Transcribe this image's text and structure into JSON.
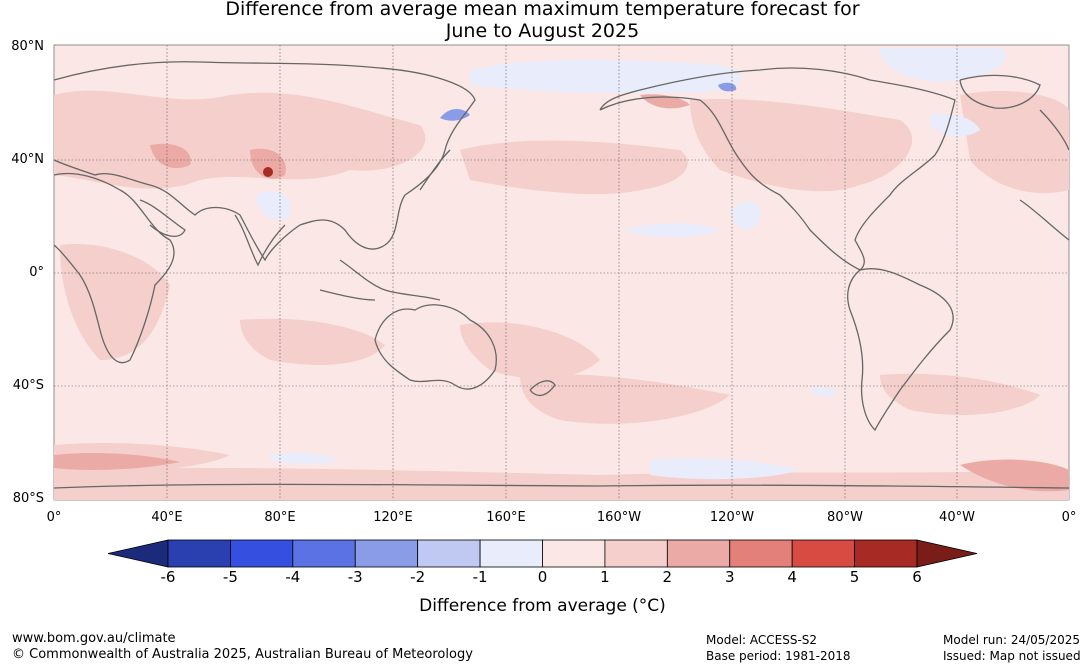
{
  "title_line1": "Difference from average mean maximum temperature forecast for",
  "title_line2": "June to August 2025",
  "lat_labels": [
    "80°N",
    "40°N",
    "0°",
    "40°S",
    "80°S"
  ],
  "lon_labels": [
    "0°",
    "40°E",
    "80°E",
    "120°E",
    "160°E",
    "160°W",
    "120°W",
    "80°W",
    "40°W",
    "0°"
  ],
  "colorbar": {
    "ticks": [
      "-6",
      "-5",
      "-4",
      "-3",
      "-2",
      "-1",
      "0",
      "1",
      "2",
      "3",
      "4",
      "5",
      "6"
    ],
    "colors": [
      "#1b2a7a",
      "#2a3fb0",
      "#3550e0",
      "#5a72e4",
      "#8a9be8",
      "#c0c9f2",
      "#e9ecfa",
      "#fbe8e6",
      "#f4cfcc",
      "#ecaaa6",
      "#e3807a",
      "#d74b42",
      "#a72a24",
      "#7a1c17"
    ],
    "title": "Difference from average (°C)"
  },
  "footer": {
    "url": "www.bom.gov.au/climate",
    "copyright": "© Commonwealth of Australia 2025, Australian Bureau of Meteorology",
    "model": "Model: ACCESS-S2",
    "base_period": "Base period: 1981-2018",
    "model_run": "Model run: 24/05/2025",
    "issued": "Issued: Map not issued"
  }
}
